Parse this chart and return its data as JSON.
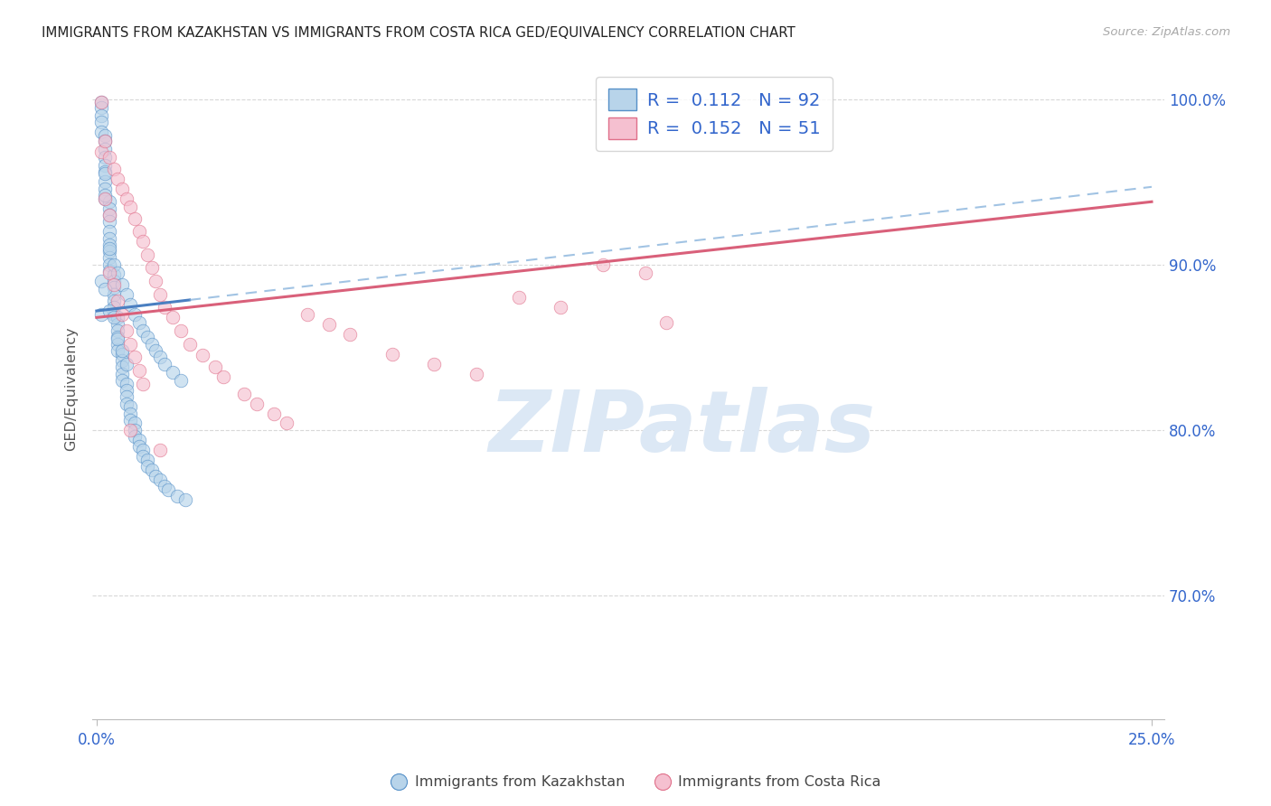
{
  "title": "IMMIGRANTS FROM KAZAKHSTAN VS IMMIGRANTS FROM COSTA RICA GED/EQUIVALENCY CORRELATION CHART",
  "source": "Source: ZipAtlas.com",
  "ylabel": "GED/Equivalency",
  "ytick_labels": [
    "70.0%",
    "80.0%",
    "90.0%",
    "100.0%"
  ],
  "ytick_values": [
    0.7,
    0.8,
    0.9,
    1.0
  ],
  "ylim": [
    0.625,
    1.025
  ],
  "xlim": [
    -0.001,
    0.253
  ],
  "kazakhstan_fill": "#b8d4ea",
  "kazakhstan_edge": "#5590c8",
  "costa_rica_fill": "#f5c0d0",
  "costa_rica_edge": "#e0708a",
  "trend_kaz_solid": "#4a7fc1",
  "trend_kaz_dash": "#7aaad8",
  "trend_cr_color": "#d9607a",
  "background_color": "#ffffff",
  "grid_color": "#d8d8d8",
  "title_color": "#222222",
  "source_color": "#aaaaaa",
  "ylabel_color": "#555555",
  "tick_color": "#3366cc",
  "legend_text_dark": "#222222",
  "legend_text_blue": "#3366cc",
  "marker_size": 110,
  "marker_alpha": 0.65,
  "kaz_x": [
    0.001,
    0.001,
    0.001,
    0.001,
    0.001,
    0.002,
    0.002,
    0.002,
    0.002,
    0.002,
    0.002,
    0.002,
    0.002,
    0.002,
    0.003,
    0.003,
    0.003,
    0.003,
    0.003,
    0.003,
    0.003,
    0.003,
    0.003,
    0.003,
    0.003,
    0.004,
    0.004,
    0.004,
    0.004,
    0.004,
    0.004,
    0.004,
    0.005,
    0.005,
    0.005,
    0.005,
    0.005,
    0.005,
    0.006,
    0.006,
    0.006,
    0.006,
    0.006,
    0.007,
    0.007,
    0.007,
    0.007,
    0.008,
    0.008,
    0.008,
    0.009,
    0.009,
    0.009,
    0.01,
    0.01,
    0.011,
    0.011,
    0.012,
    0.012,
    0.013,
    0.014,
    0.015,
    0.016,
    0.017,
    0.019,
    0.021,
    0.001,
    0.001,
    0.002,
    0.002,
    0.002,
    0.003,
    0.003,
    0.004,
    0.004,
    0.005,
    0.005,
    0.006,
    0.006,
    0.007,
    0.007,
    0.008,
    0.009,
    0.01,
    0.011,
    0.012,
    0.013,
    0.014,
    0.015,
    0.016,
    0.018,
    0.02
  ],
  "kaz_y": [
    0.998,
    0.995,
    0.99,
    0.986,
    0.98,
    0.978,
    0.975,
    0.97,
    0.965,
    0.96,
    0.956,
    0.95,
    0.946,
    0.94,
    0.938,
    0.934,
    0.93,
    0.926,
    0.92,
    0.916,
    0.912,
    0.908,
    0.904,
    0.9,
    0.896,
    0.894,
    0.89,
    0.886,
    0.882,
    0.878,
    0.874,
    0.87,
    0.868,
    0.864,
    0.86,
    0.856,
    0.852,
    0.848,
    0.846,
    0.842,
    0.838,
    0.834,
    0.83,
    0.828,
    0.824,
    0.82,
    0.816,
    0.814,
    0.81,
    0.806,
    0.804,
    0.8,
    0.796,
    0.794,
    0.79,
    0.788,
    0.784,
    0.782,
    0.778,
    0.776,
    0.772,
    0.77,
    0.766,
    0.764,
    0.76,
    0.758,
    0.89,
    0.87,
    0.955,
    0.942,
    0.885,
    0.91,
    0.872,
    0.9,
    0.868,
    0.895,
    0.855,
    0.888,
    0.848,
    0.882,
    0.84,
    0.876,
    0.87,
    0.865,
    0.86,
    0.856,
    0.852,
    0.848,
    0.844,
    0.84,
    0.835,
    0.83
  ],
  "cr_x": [
    0.001,
    0.001,
    0.002,
    0.002,
    0.003,
    0.003,
    0.003,
    0.004,
    0.004,
    0.005,
    0.005,
    0.006,
    0.006,
    0.007,
    0.007,
    0.008,
    0.008,
    0.009,
    0.009,
    0.01,
    0.01,
    0.011,
    0.011,
    0.012,
    0.013,
    0.014,
    0.015,
    0.016,
    0.018,
    0.02,
    0.022,
    0.025,
    0.028,
    0.03,
    0.035,
    0.038,
    0.042,
    0.045,
    0.05,
    0.055,
    0.06,
    0.07,
    0.08,
    0.09,
    0.1,
    0.11,
    0.12,
    0.13,
    0.008,
    0.015,
    0.135
  ],
  "cr_y": [
    0.998,
    0.968,
    0.975,
    0.94,
    0.965,
    0.93,
    0.895,
    0.958,
    0.888,
    0.952,
    0.878,
    0.946,
    0.87,
    0.94,
    0.86,
    0.935,
    0.852,
    0.928,
    0.844,
    0.92,
    0.836,
    0.914,
    0.828,
    0.906,
    0.898,
    0.89,
    0.882,
    0.874,
    0.868,
    0.86,
    0.852,
    0.845,
    0.838,
    0.832,
    0.822,
    0.816,
    0.81,
    0.804,
    0.87,
    0.864,
    0.858,
    0.846,
    0.84,
    0.834,
    0.88,
    0.874,
    0.9,
    0.895,
    0.8,
    0.788,
    0.865
  ]
}
